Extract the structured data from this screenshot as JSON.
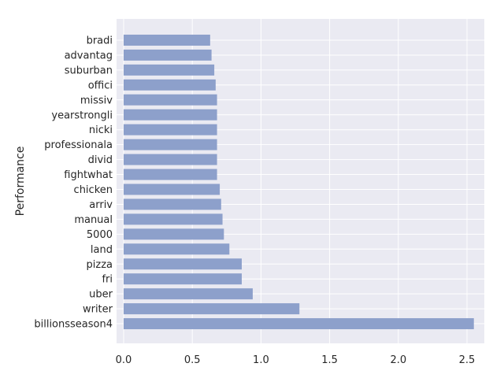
{
  "chart_data": {
    "type": "bar",
    "orientation": "horizontal",
    "categories": [
      "bradi",
      "advantag",
      "suburban",
      "offici",
      "missiv",
      "yearstrongli",
      "nicki",
      "professionala",
      "divid",
      "fightwhat",
      "chicken",
      "arriv",
      "manual",
      "5000",
      "land",
      "pizza",
      "fri",
      "uber",
      "writer",
      "billionsseason4"
    ],
    "values": [
      0.63,
      0.64,
      0.66,
      0.67,
      0.68,
      0.68,
      0.68,
      0.68,
      0.68,
      0.68,
      0.7,
      0.71,
      0.72,
      0.73,
      0.77,
      0.86,
      0.86,
      0.94,
      1.28,
      2.55
    ],
    "title": "",
    "xlabel": "",
    "ylabel": "Performance",
    "xlim": [
      0,
      2.67
    ],
    "xticks": [
      "0.0",
      "0.5",
      "1.0",
      "1.5",
      "2.0",
      "2.5"
    ],
    "grid": true,
    "bar_color": "#8da0cb",
    "background_color": "#eaeaf2",
    "grid_color": "#ffffff"
  }
}
